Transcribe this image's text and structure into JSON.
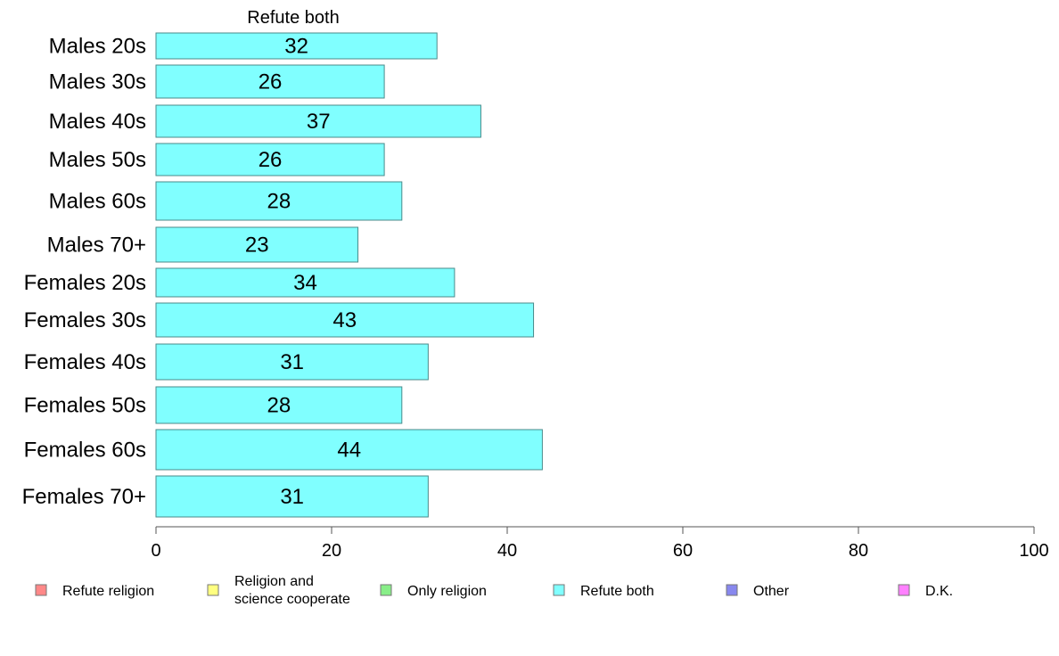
{
  "chart_data": {
    "type": "bar",
    "orientation": "horizontal",
    "title": "Refute both",
    "categories": [
      "Males 20s",
      "Males 30s",
      "Males 40s",
      "Males 50s",
      "Males 60s",
      "Males 70+",
      "Females 20s",
      "Females 30s",
      "Females 40s",
      "Females 50s",
      "Females 60s",
      "Females 70+"
    ],
    "series": [
      {
        "name": "Refute both",
        "values": [
          32,
          26,
          37,
          26,
          28,
          23,
          34,
          43,
          31,
          28,
          44,
          31
        ]
      }
    ],
    "xlim": [
      0,
      100
    ],
    "xticks": [
      0,
      20,
      40,
      60,
      80,
      100
    ],
    "xlabel": "",
    "ylabel": "",
    "grid": false,
    "legend_position": "bottom",
    "bar_color": "#80ffff",
    "bar_border": "#4a8a8a",
    "legend": [
      {
        "lines": [
          "Refute religion"
        ],
        "color": "#ff8888"
      },
      {
        "lines": [
          "Religion and",
          "science cooperate"
        ],
        "color": "#ffff80"
      },
      {
        "lines": [
          "Only religion"
        ],
        "color": "#88ee88"
      },
      {
        "lines": [
          "Refute both"
        ],
        "color": "#80ffff"
      },
      {
        "lines": [
          "Other"
        ],
        "color": "#8888ee"
      },
      {
        "lines": [
          "D.K."
        ],
        "color": "#ff80ff"
      }
    ]
  }
}
